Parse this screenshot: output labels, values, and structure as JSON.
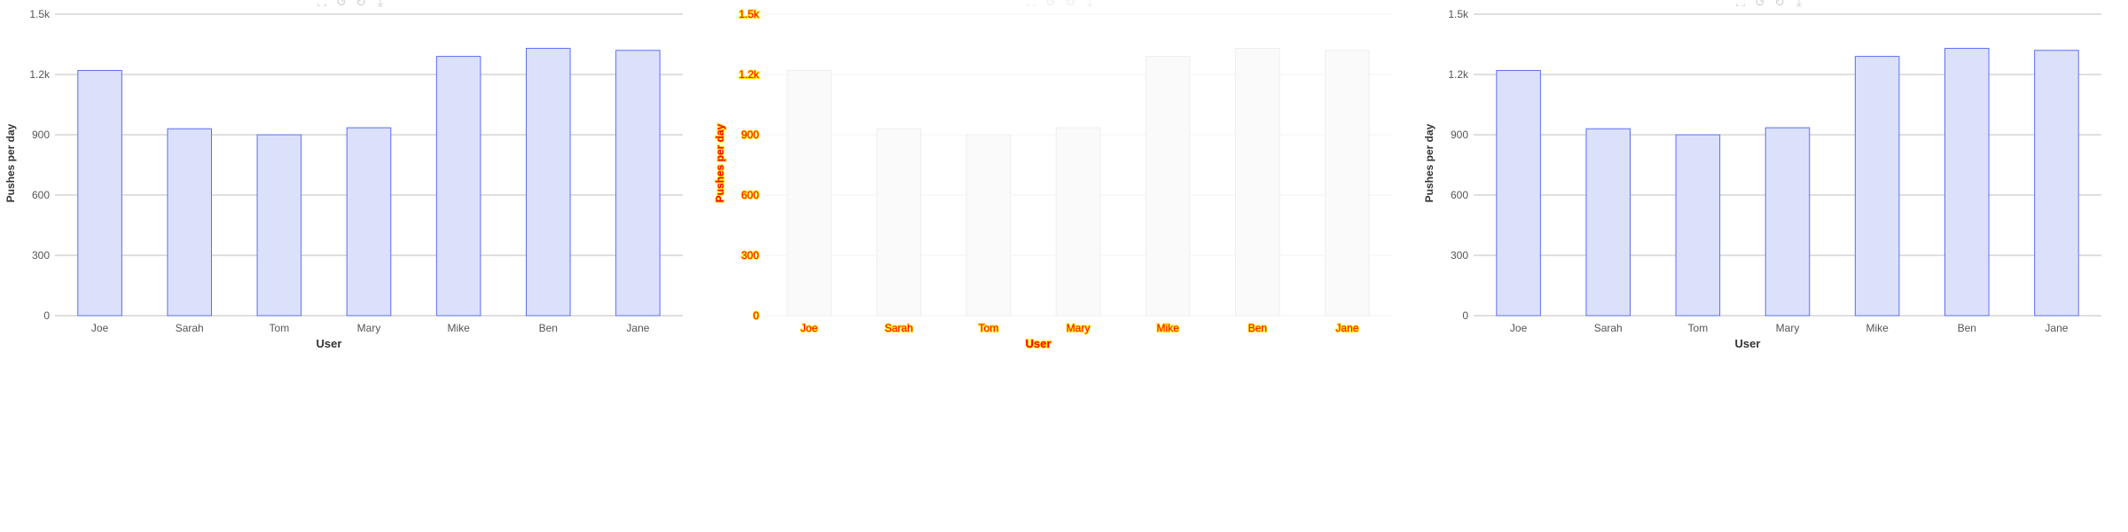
{
  "toolbar": {
    "icons": [
      "zoom-box-icon",
      "undo-icon",
      "refresh-icon",
      "download-icon"
    ],
    "glyphs": [
      "⛶",
      "↺",
      "↻",
      "⤓"
    ]
  },
  "chart_data": [
    {
      "type": "bar",
      "categories": [
        "Joe",
        "Sarah",
        "Tom",
        "Mary",
        "Mike",
        "Ben",
        "Jane"
      ],
      "values": [
        1220,
        930,
        900,
        935,
        1290,
        1330,
        1320
      ],
      "xlabel": "User",
      "ylabel": "Pushes per day",
      "ylim": [
        0,
        1500
      ],
      "yticks": [
        "0",
        "300",
        "600",
        "900",
        "1.2k",
        "1.5k"
      ],
      "grid": true,
      "colors": {
        "bar_fill": "#dce1fb",
        "bar_stroke": "#5b6ff0",
        "grid": "#bfbfbf",
        "axis_text": "#555555"
      }
    },
    {
      "type": "bar",
      "categories": [
        "Joe",
        "Sarah",
        "Tom",
        "Mary",
        "Mike",
        "Ben",
        "Jane"
      ],
      "values": [
        1220,
        930,
        900,
        935,
        1290,
        1330,
        1320
      ],
      "xlabel": "User",
      "ylabel": "Pushes per day",
      "ylim": [
        0,
        1500
      ],
      "yticks": [
        "0",
        "300",
        "600",
        "900",
        "1.2k",
        "1.5k"
      ],
      "grid": true,
      "colors": {
        "bar_fill": "#fafafa",
        "bar_stroke": "#eeeeee",
        "grid": "#f3f3f3",
        "axis_text": "#ff0000",
        "text_halo": "#ffe600"
      }
    },
    {
      "type": "bar",
      "categories": [
        "Joe",
        "Sarah",
        "Tom",
        "Mary",
        "Mike",
        "Ben",
        "Jane"
      ],
      "values": [
        1220,
        930,
        900,
        935,
        1290,
        1330,
        1320
      ],
      "xlabel": "User",
      "ylabel": "Pushes per day",
      "ylim": [
        0,
        1500
      ],
      "yticks": [
        "0",
        "300",
        "600",
        "900",
        "1.2k",
        "1.5k"
      ],
      "grid": true,
      "colors": {
        "bar_fill": "#dce1fb",
        "bar_stroke": "#5b6ff0",
        "grid": "#bfbfbf",
        "axis_text": "#555555"
      }
    }
  ]
}
